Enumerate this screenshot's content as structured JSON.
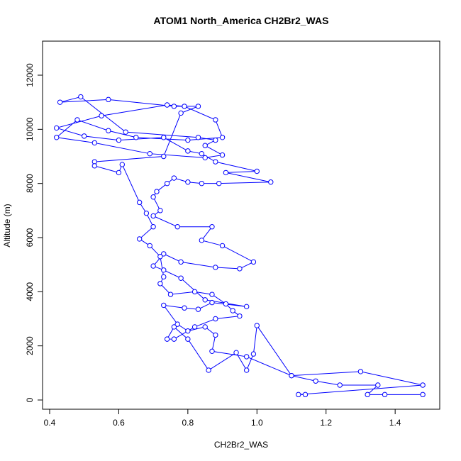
{
  "chart_data": {
    "type": "line",
    "title": "ATOM1 North_America CH2Br2_WAS",
    "x_label": "CH2Br2_WAS",
    "y_label": "Altitude (m)",
    "color": "#0000ff",
    "markers": true,
    "x": [
      1.48,
      1.37,
      1.32,
      1.35,
      1.24,
      1.17,
      1.1,
      0.97,
      0.87,
      0.88,
      0.85,
      0.8,
      0.77,
      0.73,
      0.79,
      0.83,
      0.87,
      0.97,
      0.85,
      0.78,
      0.73,
      0.7,
      0.73,
      0.78,
      0.88,
      0.95,
      0.99,
      0.9,
      0.84,
      0.87,
      0.77,
      0.7,
      0.72,
      0.7,
      0.71,
      0.74,
      0.76,
      0.8,
      0.84,
      0.89,
      1.04,
      0.91,
      1.0,
      0.88,
      0.84,
      0.8,
      0.73,
      0.6,
      0.5,
      0.42,
      0.55,
      0.74,
      0.79,
      0.88,
      0.9,
      0.8,
      0.65,
      0.57,
      0.48,
      0.42,
      0.53,
      0.69,
      0.85,
      0.9,
      0.85,
      0.88,
      0.83,
      0.62,
      0.49,
      0.43,
      0.57,
      0.76,
      0.83,
      0.78,
      0.73,
      0.53,
      0.53,
      0.6,
      0.61,
      0.66,
      0.68,
      0.7,
      0.66,
      0.69,
      0.72,
      0.73,
      0.72,
      0.75,
      0.82,
      0.87,
      0.91,
      0.93,
      0.95,
      0.88,
      0.82,
      0.76,
      0.74,
      0.76,
      0.8,
      0.86,
      0.94,
      0.97,
      0.99,
      1.0,
      1.1,
      1.3,
      1.48,
      1.12,
      1.14
    ],
    "values": [
      200,
      200,
      200,
      550,
      550,
      700,
      900,
      1600,
      1800,
      2400,
      2700,
      2550,
      2800,
      3500,
      3400,
      3350,
      3600,
      3450,
      3700,
      4500,
      4800,
      4950,
      5400,
      5100,
      4900,
      4850,
      5100,
      5700,
      5900,
      6400,
      6400,
      6800,
      7000,
      7500,
      7700,
      8000,
      8200,
      8050,
      8000,
      8000,
      8050,
      8400,
      8450,
      8800,
      9100,
      9200,
      9700,
      9600,
      9750,
      10050,
      10500,
      10900,
      10850,
      10350,
      9700,
      9600,
      9700,
      9950,
      10350,
      9700,
      9500,
      9100,
      8950,
      9050,
      9400,
      9600,
      9700,
      9900,
      11200,
      11000,
      11100,
      10850,
      10850,
      10600,
      9000,
      8800,
      8650,
      8400,
      8700,
      7300,
      6900,
      6400,
      5950,
      5700,
      5300,
      4550,
      4300,
      3900,
      4000,
      3900,
      3550,
      3300,
      3100,
      3000,
      2700,
      2250,
      2250,
      2700,
      2250,
      1100,
      1750,
      1100,
      1700,
      2750,
      900,
      1050,
      550,
      200,
      200
    ],
    "xlim": [
      0.3795,
      1.529
    ],
    "ylim": [
      -341,
      13258
    ],
    "xticks": [
      0.4,
      0.6,
      0.8,
      {
        "value": 1,
        "label": "1.0"
      },
      1.2,
      1.4
    ],
    "yticks": [
      0,
      2000,
      4000,
      6000,
      8000,
      10000,
      12000
    ]
  }
}
